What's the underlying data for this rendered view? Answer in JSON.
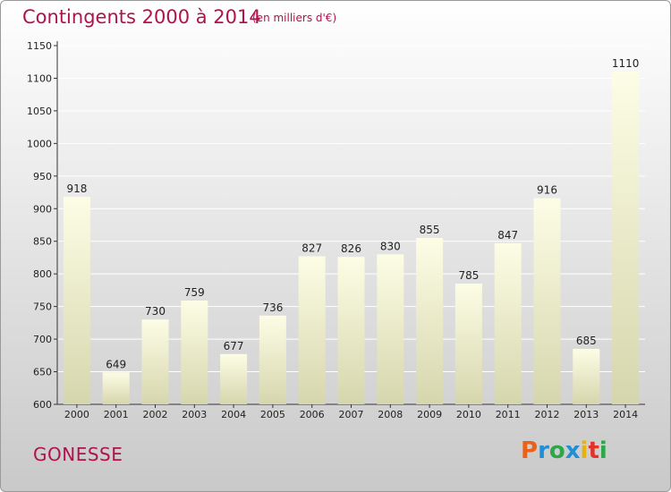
{
  "title": "Contingents 2000 à 2014",
  "unit_note": "(en milliers d'€)",
  "place": "GONESSE",
  "logo": {
    "letters": [
      "P",
      "r",
      "o",
      "x",
      "i",
      "t",
      "i"
    ],
    "colors": [
      "#e8621a",
      "#1f8fd8",
      "#2aa84a",
      "#1f8fd8",
      "#e8b20a",
      "#e0342b",
      "#2aa84a"
    ]
  },
  "chart_data": {
    "type": "bar",
    "title": "Contingents 2000 à 2014",
    "categories": [
      "2000",
      "2001",
      "2002",
      "2003",
      "2004",
      "2005",
      "2006",
      "2007",
      "2008",
      "2009",
      "2010",
      "2011",
      "2012",
      "2013",
      "2014"
    ],
    "values": [
      918,
      649,
      730,
      759,
      677,
      736,
      827,
      826,
      830,
      855,
      785,
      847,
      916,
      685,
      1110
    ],
    "ylim": [
      600,
      1150
    ],
    "yticks": [
      600,
      650,
      700,
      750,
      800,
      850,
      900,
      950,
      1000,
      1050,
      1100,
      1150
    ],
    "grid": true,
    "bar_color_top": "#fdfde6",
    "bar_color_bottom": "#d6d6ad"
  }
}
